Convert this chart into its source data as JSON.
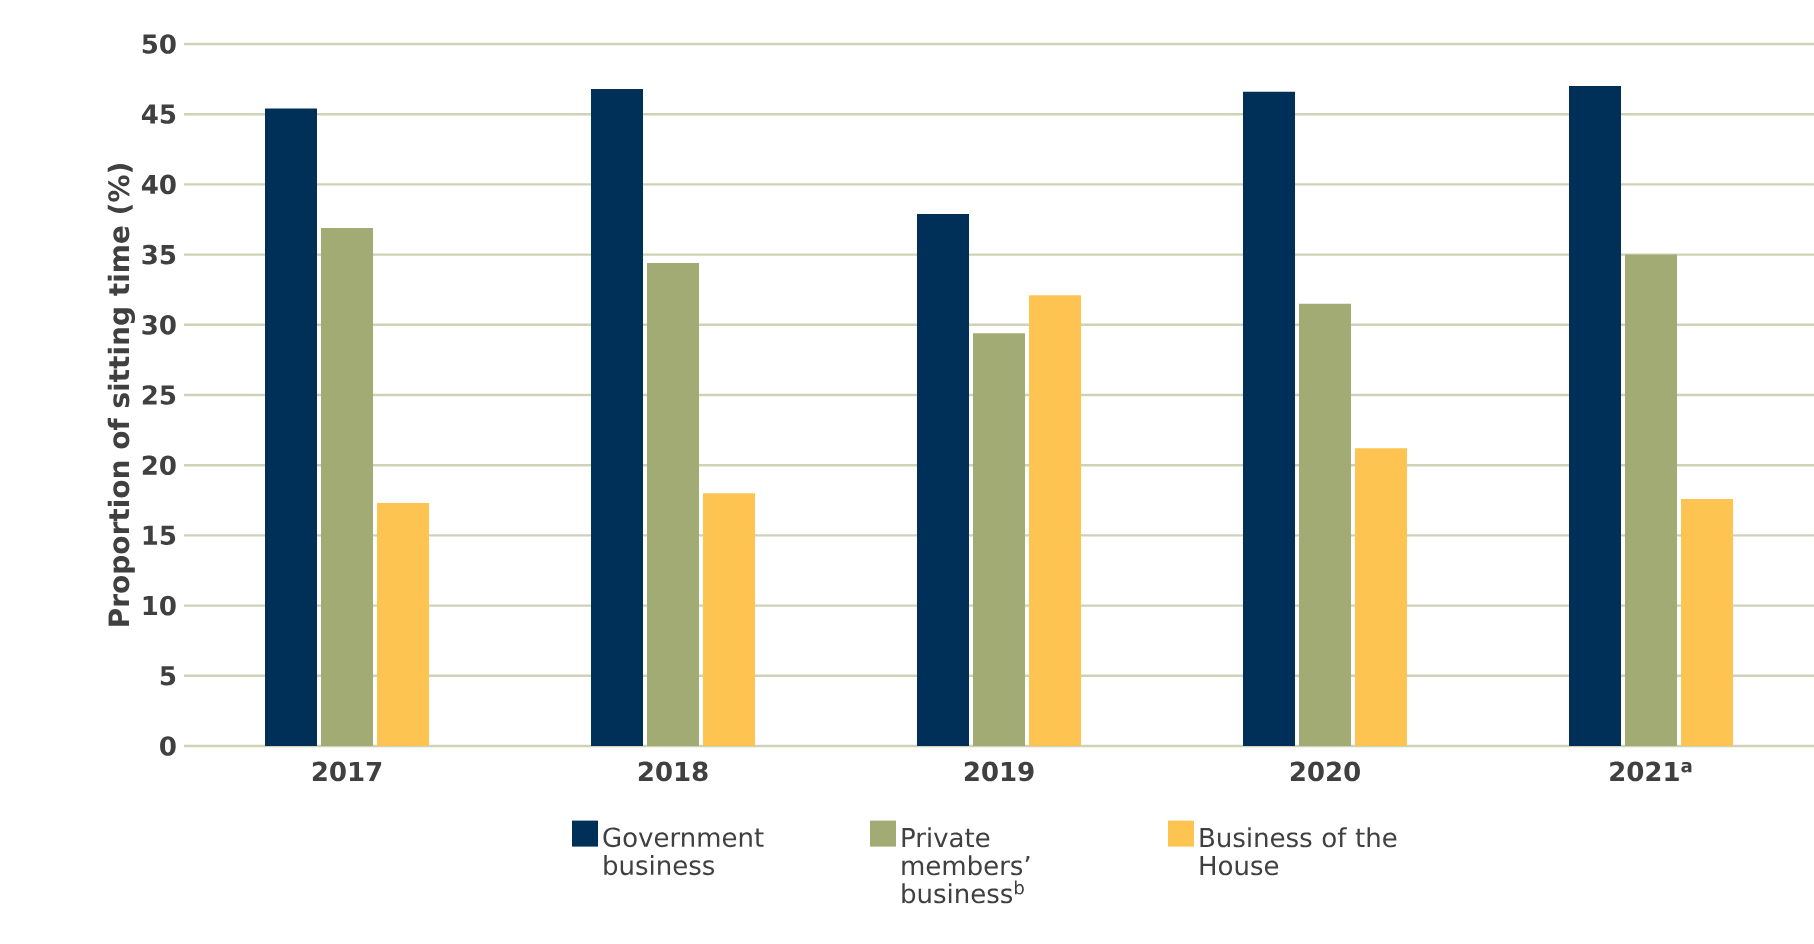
{
  "chart_data": {
    "type": "bar",
    "ylabel": "Proportion of sitting time (%)",
    "categories": [
      "2017",
      "2018",
      "2019",
      "2020",
      "2021$^{a}$"
    ],
    "series": [
      {
        "name": "Government business",
        "color": "#003057",
        "values": [
          45.4,
          46.8,
          37.9,
          46.6,
          47.0
        ]
      },
      {
        "name": "Private members’ business$^{b}$",
        "color": "#a2ab74",
        "values": [
          36.9,
          34.4,
          29.4,
          31.5,
          35.0
        ]
      },
      {
        "name": "Business of the House",
        "color": "#fdc451",
        "values": [
          17.3,
          18.0,
          32.1,
          21.2,
          17.6
        ]
      }
    ],
    "ylim": [
      0,
      50
    ],
    "yticks": [
      0,
      5,
      10,
      15,
      20,
      25,
      30,
      35,
      40,
      45,
      50
    ],
    "grid": "y",
    "legend": "bottom"
  }
}
